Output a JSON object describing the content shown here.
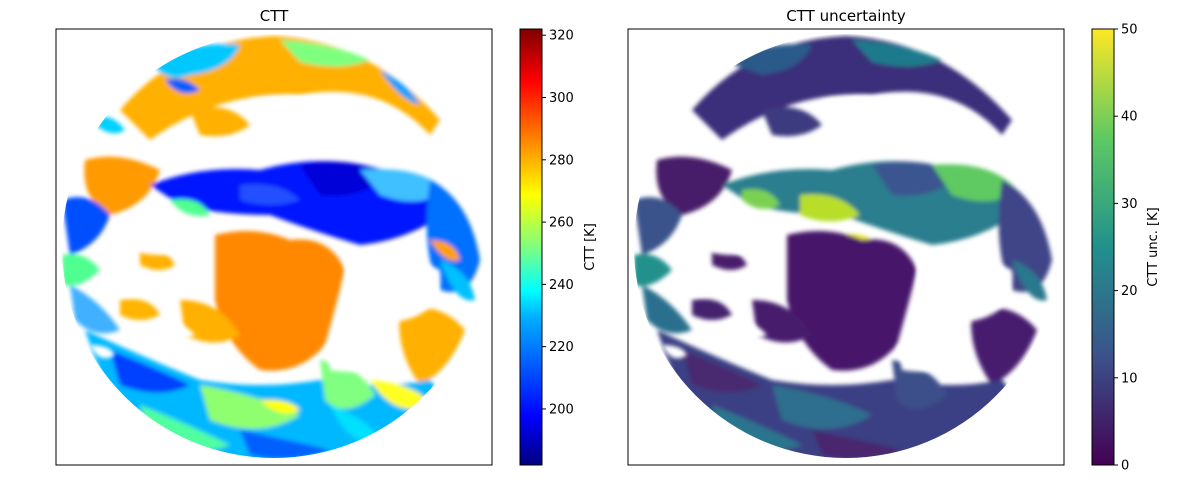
{
  "chart_data": [
    {
      "type": "heatmap",
      "title": "CTT",
      "colormap": "jet",
      "colorbar": {
        "label": "CTT [K]",
        "range": [
          182,
          322
        ],
        "ticks": [
          200,
          220,
          240,
          260,
          280,
          300,
          320
        ]
      },
      "axes_ticks": "none",
      "content": "full-disk satellite image; white = no cloud / outside disk"
    },
    {
      "type": "heatmap",
      "title": "CTT uncertainty",
      "colormap": "viridis",
      "colorbar": {
        "label": "CTT unc. [K]",
        "range": [
          0,
          50
        ],
        "ticks": [
          0,
          10,
          20,
          30,
          40,
          50
        ]
      },
      "axes_ticks": "none",
      "content": "full-disk satellite image; white = no cloud / outside disk"
    }
  ],
  "colors": {
    "jet": [
      "#00007f",
      "#0000ff",
      "#007fff",
      "#00ffff",
      "#7fff7f",
      "#ffff00",
      "#ff7f00",
      "#ff0000",
      "#7f0000"
    ],
    "viridis": [
      "#440154",
      "#3b528b",
      "#21918c",
      "#5ec962",
      "#fde725"
    ]
  }
}
